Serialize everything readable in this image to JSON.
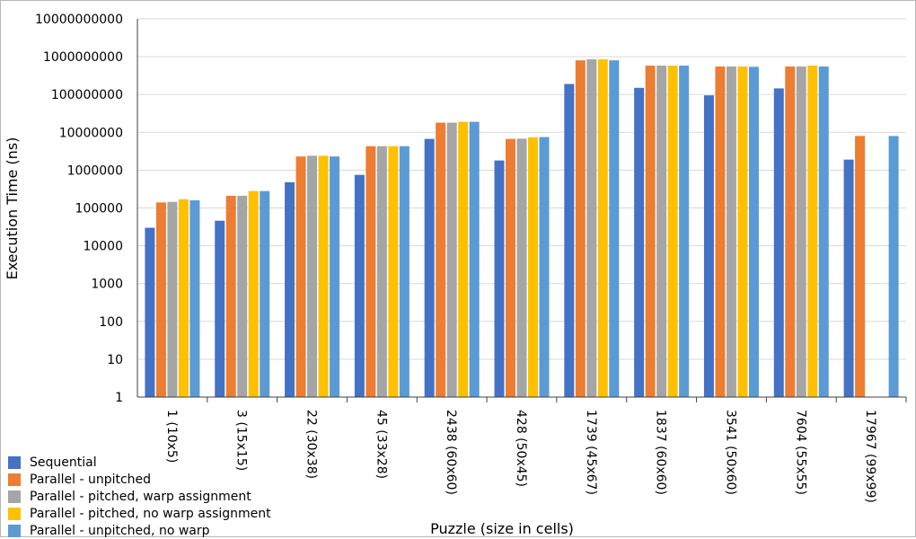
{
  "chart_data": {
    "type": "bar",
    "ylabel": "Execution Time (ns)",
    "xlabel": "Puzzle (size in cells)",
    "yscale": "log",
    "ylim": [
      1,
      10000000000
    ],
    "yticks": [
      "1",
      "10",
      "100",
      "1000",
      "10000",
      "100000",
      "1000000",
      "10000000",
      "100000000",
      "1000000000",
      "10000000000"
    ],
    "grid": "horizontal",
    "legend_position": "bottom-left",
    "categories": [
      "1 (10x5)",
      "3 (15x15)",
      "22 (30x38)",
      "45 (33x28)",
      "2438 (60x60)",
      "428 (50x45)",
      "1739 (45x67)",
      "1837 (60x60)",
      "3541 (50x60)",
      "7604 (55x55)",
      "17967 (99x99)"
    ],
    "series": [
      {
        "name": "Sequential",
        "color": "#4472C4",
        "values": [
          30000,
          46000,
          480000,
          750000,
          6700000,
          1800000,
          190000000,
          150000000,
          95000000,
          145000000,
          1900000
        ]
      },
      {
        "name": "Parallel - unpitched",
        "color": "#ED7D31",
        "values": [
          140000,
          210000,
          2300000,
          4300000,
          18000000,
          6700000,
          800000000,
          580000000,
          550000000,
          550000000,
          8000000
        ]
      },
      {
        "name": "Parallel - pitched, warp assignment",
        "color": "#A5A5A5",
        "values": [
          145000,
          210000,
          2400000,
          4300000,
          18000000,
          6800000,
          850000000,
          580000000,
          550000000,
          550000000,
          null
        ]
      },
      {
        "name": "Parallel - pitched, no warp assignment",
        "color": "#FFC000",
        "values": [
          170000,
          280000,
          2400000,
          4300000,
          19000000,
          7400000,
          850000000,
          580000000,
          550000000,
          580000000,
          null
        ]
      },
      {
        "name": "Parallel - unpitched, no warp",
        "color": "#5B9BD5",
        "values": [
          160000,
          280000,
          2300000,
          4300000,
          19000000,
          7500000,
          800000000,
          580000000,
          540000000,
          550000000,
          8000000
        ]
      }
    ]
  }
}
